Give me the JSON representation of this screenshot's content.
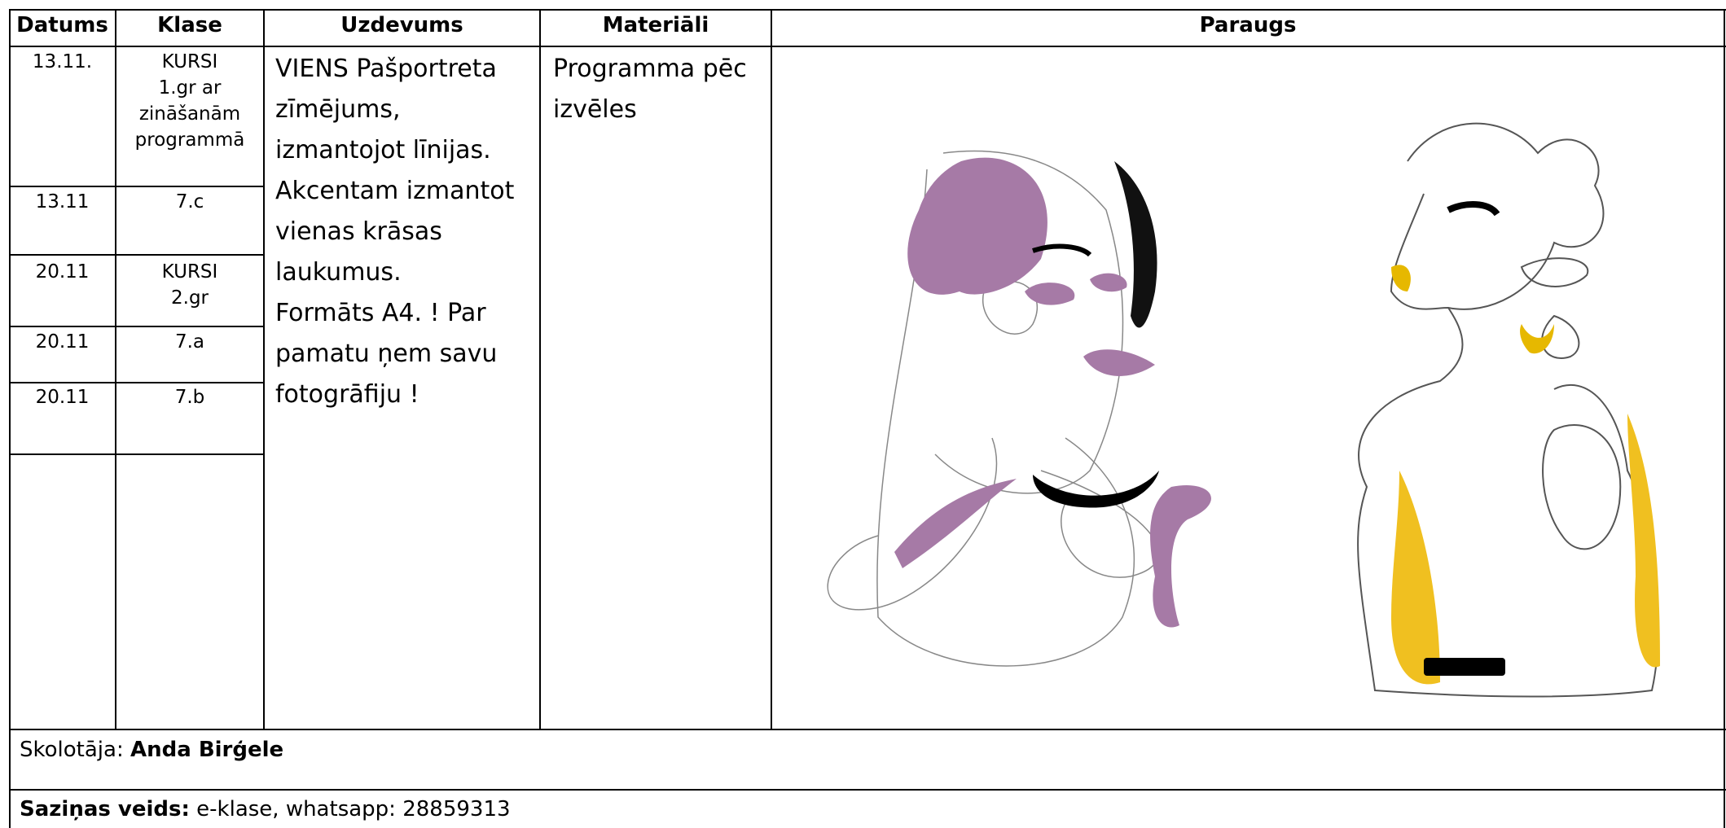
{
  "header": {
    "columns": [
      "Datums",
      "Klase",
      "Uzdevums",
      "Materiāli",
      "Paraugs"
    ]
  },
  "rows": [
    {
      "date": "13.11.",
      "class": [
        "KURSI",
        "1.gr ar",
        "zināšanām",
        "programmā"
      ]
    },
    {
      "date": "13.11",
      "class": [
        "7.c"
      ]
    },
    {
      "date": "20.11",
      "class": [
        "KURSI",
        "2.gr"
      ]
    },
    {
      "date": "20.11",
      "class": [
        "7.a"
      ]
    },
    {
      "date": "20.11",
      "class": [
        "7.b"
      ]
    }
  ],
  "task": [
    "VIENS Pašportreta",
    "zīmējums,",
    "izmantojot līnijas.",
    "Akcentam izmantot",
    "vienas krāsas",
    "laukumus.",
    "Formāts A4. ! Par",
    "pamatu ņem savu",
    "fotogrāfiju !"
  ],
  "materials": [
    "Programma pēc",
    "izvēles"
  ],
  "teacher": {
    "label": "Skolotāja:",
    "name": "Anda Birģele"
  },
  "contact": {
    "label": "Saziņas veids:",
    "text": "e-klase, whatsapp: 28859313"
  }
}
